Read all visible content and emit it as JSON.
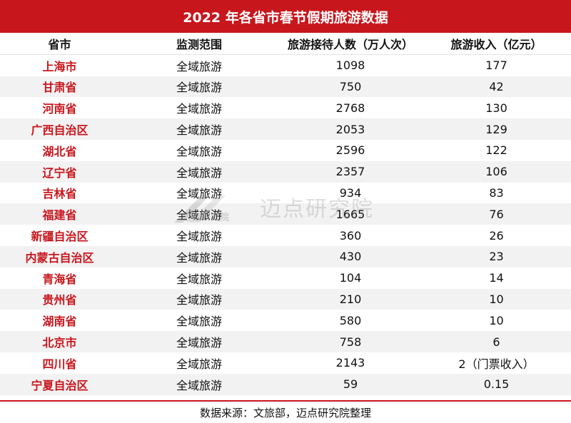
{
  "title": "2022 年各省市春节假期旅游数据",
  "table": {
    "headers": [
      "省市",
      "监测范围",
      "旅游接待人数（万人次）",
      "旅游收入（亿元）"
    ],
    "rows": [
      [
        "上海市",
        "全域旅游",
        "1098",
        "177"
      ],
      [
        "甘肃省",
        "全域旅游",
        "750",
        "42"
      ],
      [
        "河南省",
        "全域旅游",
        "2768",
        "130"
      ],
      [
        "广西自治区",
        "全域旅游",
        "2053",
        "129"
      ],
      [
        "湖北省",
        "全域旅游",
        "2596",
        "122"
      ],
      [
        "辽宁省",
        "全域旅游",
        "2357",
        "106"
      ],
      [
        "吉林省",
        "全域旅游",
        "934",
        "83"
      ],
      [
        "福建省",
        "全域旅游",
        "1665",
        "76"
      ],
      [
        "新疆自治区",
        "全域旅游",
        "360",
        "26"
      ],
      [
        "内蒙古自治区",
        "全域旅游",
        "430",
        "23"
      ],
      [
        "青海省",
        "全域旅游",
        "104",
        "14"
      ],
      [
        "贵州省",
        "全域旅游",
        "210",
        "10"
      ],
      [
        "湖南省",
        "全域旅游",
        "580",
        "10"
      ],
      [
        "北京市",
        "全域旅游",
        "758",
        "6"
      ],
      [
        "四川省",
        "全域旅游",
        "2143",
        "2（门票收入）"
      ],
      [
        "宁夏自治区",
        "全域旅游",
        "59",
        "0.15"
      ]
    ]
  },
  "watermark": {
    "small_text": "迈点研究院",
    "big_text": "迈点研究院"
  },
  "source": "数据来源：文旅部，迈点研究院整理",
  "colors": {
    "accent": "#c8161d",
    "stripe": "#f2f2f2"
  }
}
